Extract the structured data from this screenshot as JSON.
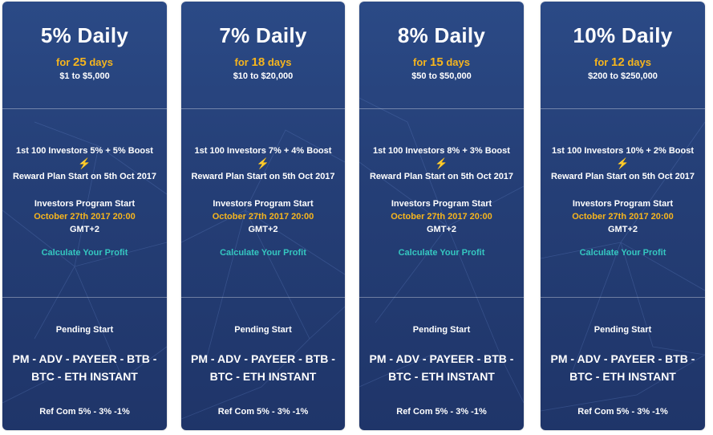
{
  "plans": [
    {
      "title": "5% Daily",
      "for_prefix": "for",
      "days": "25",
      "days_suffix": "days",
      "range": "$1 to $5,000",
      "boost": "1st 100 Investors 5% + 5% Boost",
      "reward": "Reward Plan Start on 5th Oct 2017",
      "program_label": "Investors Program Start",
      "program_date": "October 27th 2017 20:00",
      "program_tz": "GMT+2",
      "calc": "Calculate Your Profit",
      "pending": "Pending Start",
      "methods": "PM - ADV - PAYEER - BTB - BTC - ETH INSTANT",
      "refcom": "Ref Com 5% - 3% -1%"
    },
    {
      "title": "7% Daily",
      "for_prefix": "for",
      "days": "18",
      "days_suffix": "days",
      "range": "$10 to $20,000",
      "boost": "1st 100 Investors 7% + 4% Boost",
      "reward": "Reward Plan Start on 5th Oct 2017",
      "program_label": "Investors Program Start",
      "program_date": "October 27th 2017 20:00",
      "program_tz": "GMT+2",
      "calc": "Calculate Your Profit",
      "pending": "Pending Start",
      "methods": "PM - ADV - PAYEER - BTB -BTC - ETH INSTANT",
      "refcom": "Ref Com 5% - 3% -1%"
    },
    {
      "title": "8% Daily",
      "for_prefix": "for",
      "days": "15",
      "days_suffix": "days",
      "range": "$50 to $50,000",
      "boost": "1st 100 Investors 8% + 3% Boost",
      "reward": "Reward Plan Start on 5th Oct 2017",
      "program_label": "Investors Program Start",
      "program_date": "October 27th 2017 20:00",
      "program_tz": "GMT+2",
      "calc": "Calculate Your Profit",
      "pending": "Pending Start",
      "methods": "PM - ADV - PAYEER - BTB - BTC - ETH INSTANT",
      "refcom": "Ref Com 5% - 3% -1%"
    },
    {
      "title": "10% Daily",
      "for_prefix": "for",
      "days": "12",
      "days_suffix": "days",
      "range": "$200 to $250,000",
      "boost": "1st 100 Investors 10% + 2% Boost",
      "reward": "Reward Plan Start on 5th Oct 2017",
      "program_label": "Investors Program Start",
      "program_date": "October 27th 2017 20:00",
      "program_tz": "GMT+2",
      "calc": "Calculate Your Profit",
      "pending": "Pending Start",
      "methods": "PM - ADV - PAYEER - BTB - BTC - ETH INSTANT",
      "refcom": "Ref Com 5% - 3% -1%"
    }
  ],
  "icons": {
    "boost": "lightning-bolt-icon"
  },
  "colors": {
    "card_bg": "#253f77",
    "accent_gold": "#f6b51d",
    "accent_teal": "#35c7c0"
  }
}
